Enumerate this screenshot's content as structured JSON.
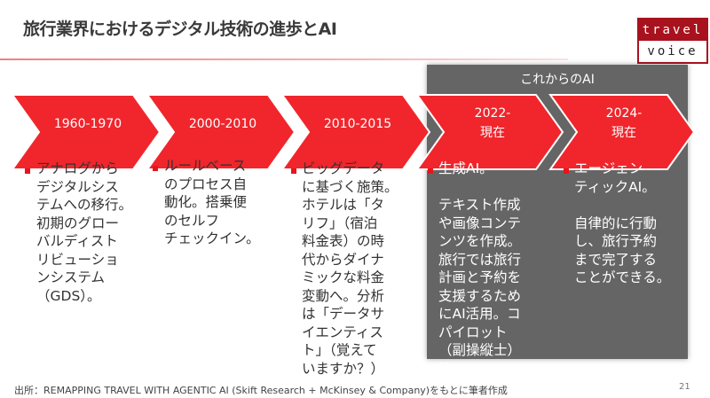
{
  "title": "旅行業界におけるデジタル技術の進歩とAI",
  "logo": {
    "top": "travel",
    "bottom": "voice",
    "color": "#a8121e"
  },
  "panel": {
    "title": "これからのAI",
    "color": "#656565"
  },
  "accent": "#f0262c",
  "stages": [
    {
      "label": "1960-1970",
      "text": "アナログから\nデジタルシス\nテムへの移行。\n初期のグロー\nバルディスト\nリビューショ\nンシステム\n（GDS）。"
    },
    {
      "label": "2000-2010",
      "text": "ルールベース\nのプロセス自\n動化。搭乗便\nのセルフ\nチェックイン。"
    },
    {
      "label": "2010-2015",
      "text": "ビッグデータ\nに基づく施策。\nホテルは「タ\nリフ」（宿泊\n料金表）の時\n代からダイナ\nミックな料金\n変動へ。分析\nは「データサ\nイエンティス\nト」（覚えて\nいますか？）"
    },
    {
      "label": "2022-\n現在",
      "text": "生成AI。\n\nテキスト作成\nや画像コンテ\nンツを作成。\n旅行では旅行\n計画と予約を\n支援するため\nにAI活用。コ\nパイロット\n（副操縦士）\n的。"
    },
    {
      "label": "2024-\n現在",
      "text": "エージェン\nティックAI。\n\n自律的に行動\nし、旅行予約\nまで完了する\nことができる。"
    }
  ],
  "footer": "出所：REMAPPING TRAVEL WITH AGENTIC AI (Skift Research + McKinsey & Company)をもとに筆者作成",
  "page_number": "21"
}
